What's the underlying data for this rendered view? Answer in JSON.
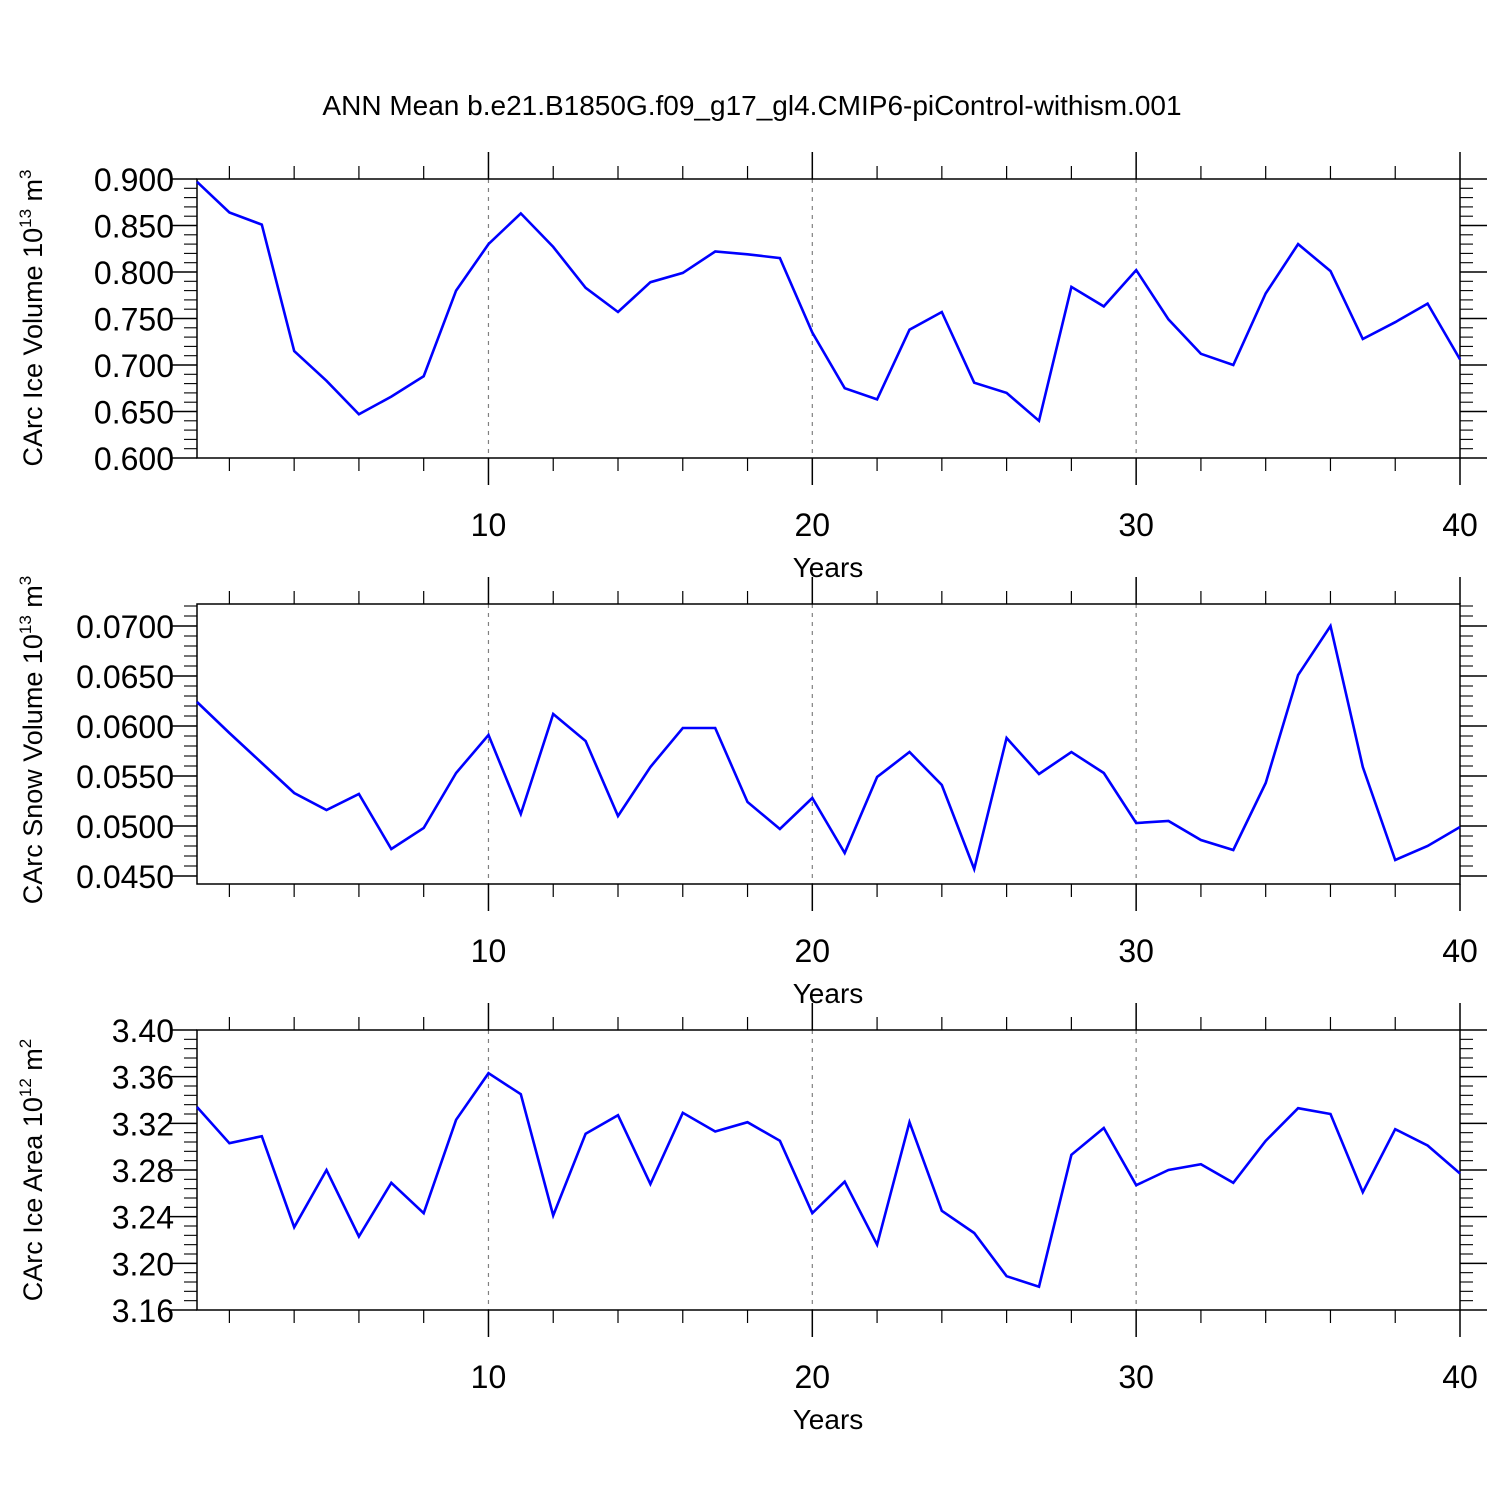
{
  "title": "ANN Mean b.e21.B1850G.f09_g17_gl4.CMIP6-piControl-withism.001",
  "line_color": "#0000ff",
  "chart_data": [
    {
      "type": "line",
      "ylabel_main": "CArc Ice Volume 10",
      "ylabel_exp": "13",
      "ylabel_unit": " m",
      "ylabel_unit_exp": "3",
      "xlabel": "Years",
      "xlim": [
        1,
        40
      ],
      "ylim": [
        0.6,
        0.9
      ],
      "x_ticks": [
        10,
        20,
        30,
        40
      ],
      "y_ticks": [
        "0.600",
        "0.650",
        "0.700",
        "0.750",
        "0.800",
        "0.850",
        "0.900"
      ],
      "x": [
        1,
        2,
        3,
        4,
        5,
        6,
        7,
        8,
        9,
        10,
        11,
        12,
        13,
        14,
        15,
        16,
        17,
        18,
        19,
        20,
        21,
        22,
        23,
        24,
        25,
        26,
        27,
        28,
        29,
        30,
        31,
        32,
        33,
        34,
        35,
        36,
        37,
        38,
        39,
        40
      ],
      "values": [
        0.897,
        0.864,
        0.851,
        0.715,
        0.683,
        0.647,
        0.666,
        0.688,
        0.78,
        0.83,
        0.863,
        0.827,
        0.783,
        0.757,
        0.789,
        0.799,
        0.822,
        0.819,
        0.815,
        0.735,
        0.675,
        0.663,
        0.738,
        0.757,
        0.681,
        0.67,
        0.64,
        0.784,
        0.763,
        0.802,
        0.749,
        0.712,
        0.7,
        0.777,
        0.83,
        0.801,
        0.728,
        0.746,
        0.766,
        0.706
      ]
    },
    {
      "type": "line",
      "ylabel_main": "CArc Snow Volume 10",
      "ylabel_exp": "13",
      "ylabel_unit": " m",
      "ylabel_unit_exp": "3",
      "xlabel": "Years",
      "xlim": [
        1,
        40
      ],
      "ylim": [
        0.0442,
        0.0722
      ],
      "x_ticks": [
        10,
        20,
        30,
        40
      ],
      "y_ticks": [
        "0.0450",
        "0.0500",
        "0.0550",
        "0.0600",
        "0.0650",
        "0.0700"
      ],
      "x": [
        1,
        2,
        3,
        4,
        5,
        6,
        7,
        8,
        9,
        10,
        11,
        12,
        13,
        14,
        15,
        16,
        17,
        18,
        19,
        20,
        21,
        22,
        23,
        24,
        25,
        26,
        27,
        28,
        29,
        30,
        31,
        32,
        33,
        34,
        35,
        36,
        37,
        38,
        39,
        40
      ],
      "values": [
        0.0624,
        0.0593,
        0.0563,
        0.0533,
        0.0516,
        0.0532,
        0.0477,
        0.0498,
        0.0553,
        0.0591,
        0.0512,
        0.0612,
        0.0585,
        0.051,
        0.0559,
        0.0598,
        0.0598,
        0.0524,
        0.0497,
        0.0528,
        0.0473,
        0.0549,
        0.0574,
        0.0541,
        0.0457,
        0.0588,
        0.0552,
        0.0574,
        0.0553,
        0.0503,
        0.0505,
        0.0486,
        0.0476,
        0.0543,
        0.0651,
        0.07,
        0.0559,
        0.0466,
        0.048,
        0.0499
      ]
    },
    {
      "type": "line",
      "ylabel_main": "CArc Ice Area 10",
      "ylabel_exp": "12",
      "ylabel_unit": " m",
      "ylabel_unit_exp": "2",
      "xlabel": "Years",
      "xlim": [
        1,
        40
      ],
      "ylim": [
        3.16,
        3.4
      ],
      "x_ticks": [
        10,
        20,
        30,
        40
      ],
      "y_ticks": [
        "3.16",
        "3.20",
        "3.24",
        "3.28",
        "3.32",
        "3.36",
        "3.40"
      ],
      "x": [
        1,
        2,
        3,
        4,
        5,
        6,
        7,
        8,
        9,
        10,
        11,
        12,
        13,
        14,
        15,
        16,
        17,
        18,
        19,
        20,
        21,
        22,
        23,
        24,
        25,
        26,
        27,
        28,
        29,
        30,
        31,
        32,
        33,
        34,
        35,
        36,
        37,
        38,
        39,
        40
      ],
      "values": [
        3.334,
        3.303,
        3.309,
        3.231,
        3.28,
        3.223,
        3.269,
        3.243,
        3.323,
        3.363,
        3.345,
        3.241,
        3.311,
        3.327,
        3.268,
        3.329,
        3.313,
        3.321,
        3.305,
        3.243,
        3.27,
        3.216,
        3.321,
        3.245,
        3.226,
        3.189,
        3.18,
        3.293,
        3.316,
        3.267,
        3.28,
        3.285,
        3.269,
        3.305,
        3.333,
        3.328,
        3.261,
        3.315,
        3.301,
        3.277
      ]
    }
  ]
}
